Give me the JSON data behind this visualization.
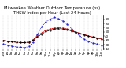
{
  "title": "Milwaukee Weather Outdoor Temperature (vs) THSW Index per Hour (Last 24 Hours)",
  "background_color": "#ffffff",
  "grid_color": "#aaaaaa",
  "hours": [
    0,
    1,
    2,
    3,
    4,
    5,
    6,
    7,
    8,
    9,
    10,
    11,
    12,
    13,
    14,
    15,
    16,
    17,
    18,
    19,
    20,
    21,
    22,
    23
  ],
  "outdoor_temp": [
    30,
    28,
    27,
    26,
    25,
    25,
    26,
    32,
    40,
    48,
    54,
    57,
    59,
    60,
    59,
    57,
    54,
    50,
    47,
    44,
    41,
    38,
    36,
    34
  ],
  "thsw_index": [
    22,
    19,
    17,
    15,
    14,
    13,
    16,
    26,
    44,
    62,
    74,
    80,
    84,
    81,
    76,
    68,
    58,
    48,
    40,
    33,
    28,
    24,
    22,
    19
  ],
  "heat_index": [
    30,
    28,
    27,
    26,
    25,
    25,
    26,
    31,
    38,
    45,
    51,
    54,
    57,
    58,
    57,
    55,
    52,
    49,
    46,
    43,
    40,
    38,
    36,
    34
  ],
  "temp_color": "#cc0000",
  "thsw_color": "#0000cc",
  "heat_color": "#000000",
  "ylim_min": 10,
  "ylim_max": 90,
  "yticks": [
    10,
    20,
    30,
    40,
    50,
    60,
    70,
    80
  ],
  "title_fontsize": 3.8,
  "tick_fontsize": 3.0,
  "line_width": 0.6,
  "marker_size": 1.0
}
